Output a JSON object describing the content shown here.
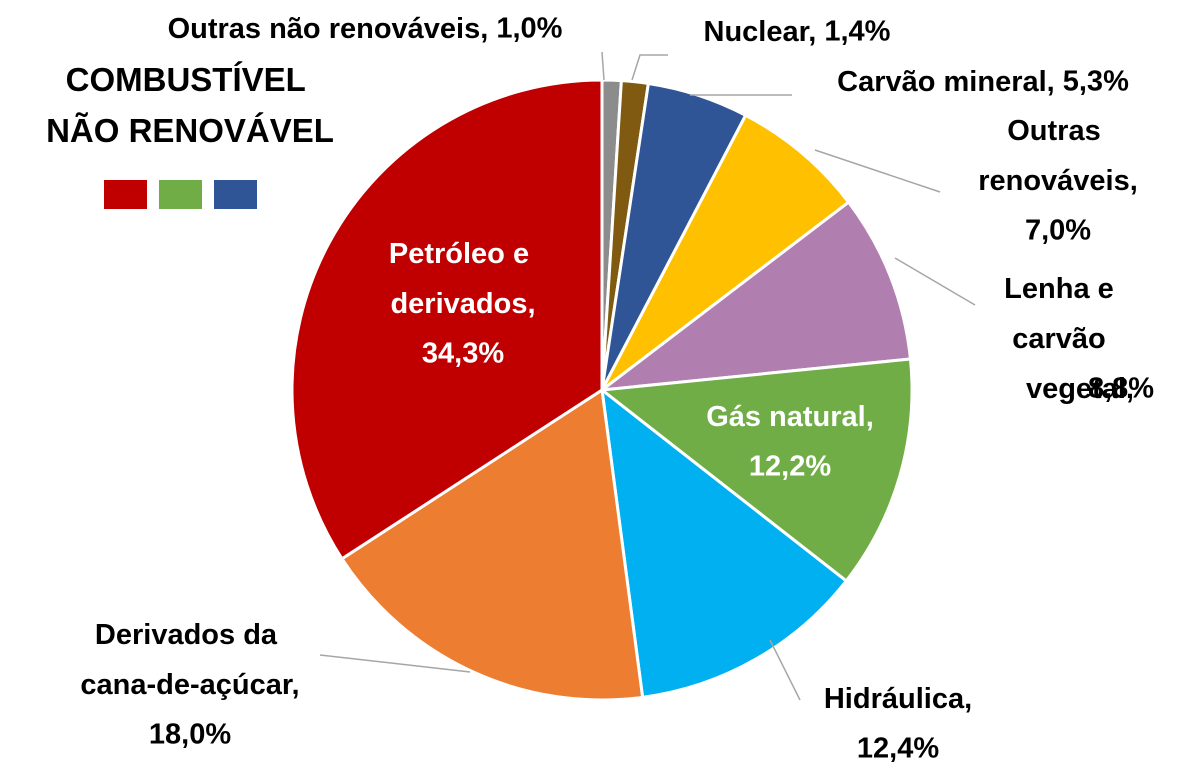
{
  "chart_data": {
    "type": "pie",
    "title": "COMBUSTÍVEL NÃO RENOVÁVEL",
    "categories": [
      "Outras não renováveis,",
      "Nuclear,",
      "Carvão mineral,",
      "Outras renováveis,",
      "Lenha e carvão vegetal,",
      "Gás natural,",
      "Hidráulica,",
      "Derivados da cana-de-açúcar,",
      "Petróleo e derivados,"
    ],
    "values": [
      1.0,
      1.4,
      5.3,
      7.0,
      8.8,
      12.2,
      12.4,
      18.0,
      34.3
    ],
    "value_labels": [
      "1,0%",
      "1,4%",
      "5,3%",
      "7,0%",
      "8,8%",
      "12,2%",
      "12,4%",
      "18,0%",
      "34,3%"
    ],
    "colors": [
      "#8c8c8c",
      "#7f5a10",
      "#2f5597",
      "#ffc000",
      "#b07fb0",
      "#70ad47",
      "#00b0f0",
      "#ed7d31",
      "#c00000"
    ]
  }
}
